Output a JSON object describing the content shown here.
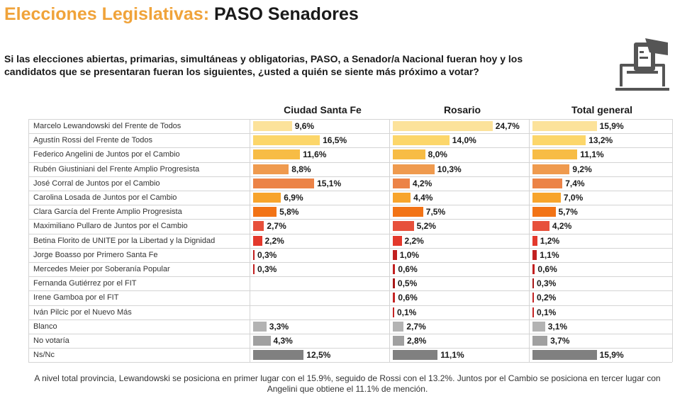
{
  "header": {
    "title_part1": "Elecciones Legislativas:",
    "title_part2": "PASO Senadores",
    "question": "Si las elecciones abiertas, primarias, simultáneas y obligatorias, PASO, a Senador/a Nacional fueran hoy y los candidatos que se presentaran fueran los siguientes, ¿usted a quién se siente más próximo a votar?"
  },
  "icon": "ballot-box-icon",
  "footnote": "A nivel total provincia, Lewandowski se posiciona en primer lugar con el 15.9%, seguido de Rossi con el 13.2%. Juntos por el Cambio se posiciona en tercer lugar con Angelini que obtiene el 11.1% de mención.",
  "chart_data": {
    "type": "bar",
    "orientation": "horizontal",
    "categories": [
      "Marcelo Lewandowski del Frente de Todos",
      "Agustín Rossi del Frente de Todos",
      "Federico Angelini de Juntos por el Cambio",
      "Rubén Giustiniani del Frente Amplio Progresista",
      "José Corral de Juntos por el Cambio",
      "Carolina Losada de Juntos por el Cambio",
      "Clara García del Frente Amplio Progresista",
      "Maximiliano Pullaro de Juntos por el Cambio",
      "Betina Florito de UNITE por la Libertad y la Dignidad",
      "Jorge Boasso por Primero Santa Fe",
      "Mercedes Meier por Soberanía Popular",
      "Fernanda Gutiérrez por el FIT",
      "Irene Gamboa por el FIT",
      "Iván Pilcic por el Nuevo  Más",
      "Blanco",
      "No votaría",
      "Ns/Nc"
    ],
    "colors": [
      "#fce29a",
      "#fcd66a",
      "#f7bc45",
      "#ef9a4e",
      "#ec8347",
      "#f7a42c",
      "#f27315",
      "#e7503b",
      "#e3392c",
      "#c22020",
      "#c22020",
      "#a81818",
      "#c42525",
      "#c42525",
      "#b3b3b3",
      "#a0a0a0",
      "#808080"
    ],
    "series": [
      {
        "name": "Ciudad Santa Fe",
        "values": [
          9.6,
          16.5,
          11.6,
          8.8,
          15.1,
          6.9,
          5.8,
          2.7,
          2.2,
          0.3,
          0.3,
          null,
          null,
          null,
          3.3,
          4.3,
          12.5
        ],
        "labels": [
          "9,6%",
          "16,5%",
          "11,6%",
          "8,8%",
          "15,1%",
          "6,9%",
          "5,8%",
          "2,7%",
          "2,2%",
          "0,3%",
          "0,3%",
          "",
          "",
          "",
          "3,3%",
          "4,3%",
          "12,5%"
        ]
      },
      {
        "name": "Rosario",
        "values": [
          24.7,
          14.0,
          8.0,
          10.3,
          4.2,
          4.4,
          7.5,
          5.2,
          2.2,
          1.0,
          0.6,
          0.5,
          0.6,
          0.1,
          2.7,
          2.8,
          11.1
        ],
        "labels": [
          "24,7%",
          "14,0%",
          "8,0%",
          "10,3%",
          "4,2%",
          "4,4%",
          "7,5%",
          "5,2%",
          "2,2%",
          "1,0%",
          "0,6%",
          "0,5%",
          "0,6%",
          "0,1%",
          "2,7%",
          "2,8%",
          "11,1%"
        ]
      },
      {
        "name": "Total general",
        "values": [
          15.9,
          13.2,
          11.1,
          9.2,
          7.4,
          7.0,
          5.7,
          4.2,
          1.2,
          1.1,
          0.6,
          0.3,
          0.2,
          0.1,
          3.1,
          3.7,
          15.9
        ],
        "labels": [
          "15,9%",
          "13,2%",
          "11,1%",
          "9,2%",
          "7,4%",
          "7,0%",
          "5,7%",
          "4,2%",
          "1,2%",
          "1,1%",
          "0,6%",
          "0,3%",
          "0,2%",
          "0,1%",
          "3,1%",
          "3,7%",
          "15,9%"
        ]
      }
    ]
  }
}
